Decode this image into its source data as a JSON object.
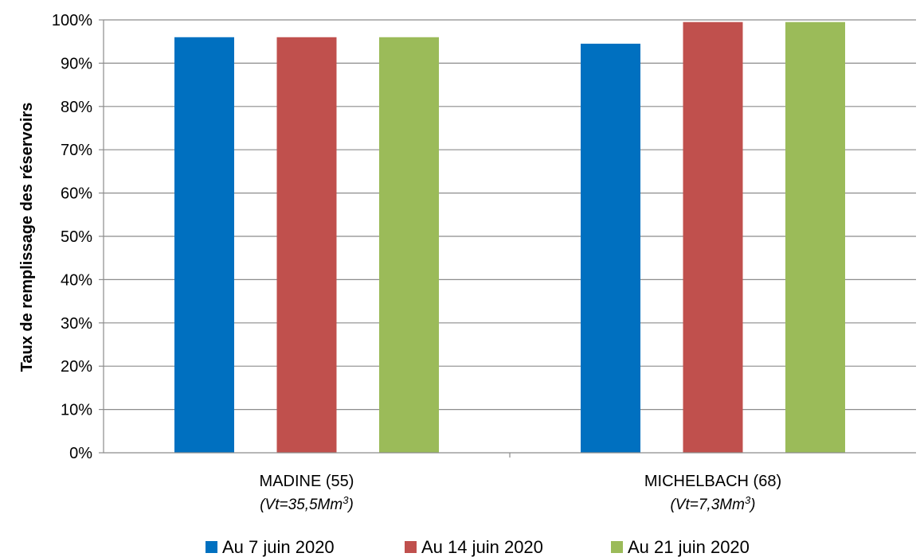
{
  "chart_data": {
    "type": "bar",
    "ylabel": "Taux de remplissage des réservoirs",
    "ylim": [
      0,
      100
    ],
    "y_ticks": [
      "0%",
      "10%",
      "20%",
      "30%",
      "40%",
      "50%",
      "60%",
      "70%",
      "80%",
      "90%",
      "100%"
    ],
    "grid": true,
    "legend_position": "bottom",
    "categories": [
      {
        "label": "MADINE (55)",
        "sub": "(Vt=35,5Mm",
        "sup": "3",
        "close": ")"
      },
      {
        "label": "MICHELBACH (68)",
        "sub": "(Vt=7,3Mm",
        "sup": "3",
        "close": ")"
      }
    ],
    "series": [
      {
        "name": "Au 7 juin 2020",
        "color": "#0070C0",
        "values": [
          96,
          94.5
        ]
      },
      {
        "name": "Au 14 juin 2020",
        "color": "#C0504D",
        "values": [
          96,
          99.5
        ]
      },
      {
        "name": "Au 21 juin 2020",
        "color": "#9BBB59",
        "values": [
          96,
          99.5
        ]
      }
    ]
  }
}
